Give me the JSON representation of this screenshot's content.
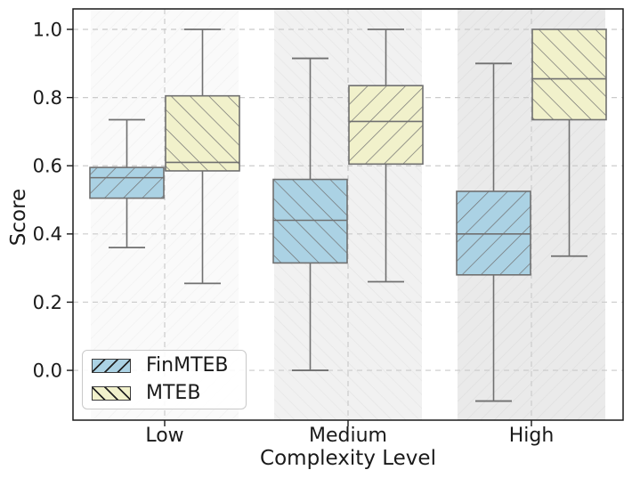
{
  "chart_data": {
    "type": "boxplot",
    "title": "",
    "xlabel": "Complexity Level",
    "ylabel": "Score",
    "categories": [
      "Low",
      "Medium",
      "High"
    ],
    "ytick_labels": [
      "0.0",
      "0.2",
      "0.4",
      "0.6",
      "0.8",
      "1.0"
    ],
    "ytick_values": [
      0.0,
      0.2,
      0.4,
      0.6,
      0.8,
      1.0
    ],
    "ylim": [
      -0.146,
      1.06
    ],
    "grid": true,
    "grid_style": "dashed",
    "legend": {
      "position": "lower-left",
      "items": [
        {
          "label": "FinMTEB",
          "color": "#abd2e4",
          "hatch": "/"
        },
        {
          "label": "MTEB",
          "color": "#f1f1cb",
          "hatch": "\\"
        }
      ]
    },
    "series": [
      {
        "name": "FinMTEB",
        "fill": "#abd2e4",
        "boxes": [
          {
            "category": "Low",
            "hatch": "/",
            "whisker_low": 0.36,
            "q1": 0.505,
            "median": 0.565,
            "q3": 0.595,
            "whisker_high": 0.735
          },
          {
            "category": "Medium",
            "hatch": "\\",
            "whisker_low": 0.0,
            "q1": 0.315,
            "median": 0.44,
            "q3": 0.56,
            "whisker_high": 0.915
          },
          {
            "category": "High",
            "hatch": "/",
            "whisker_low": -0.09,
            "q1": 0.28,
            "median": 0.4,
            "q3": 0.525,
            "whisker_high": 0.9
          }
        ]
      },
      {
        "name": "MTEB",
        "fill": "#f1f1cb",
        "boxes": [
          {
            "category": "Low",
            "hatch": "\\",
            "whisker_low": 0.255,
            "q1": 0.585,
            "median": 0.61,
            "q3": 0.805,
            "whisker_high": 1.0
          },
          {
            "category": "Medium",
            "hatch": "/",
            "whisker_low": 0.26,
            "q1": 0.605,
            "median": 0.73,
            "q3": 0.835,
            "whisker_high": 1.0
          },
          {
            "category": "High",
            "hatch": "\\",
            "whisker_low": 0.335,
            "q1": 0.735,
            "median": 0.855,
            "q3": 1.0,
            "whisker_high": 1.0
          }
        ]
      }
    ],
    "bands": {
      "hatches": [
        "/",
        "\\",
        "/"
      ],
      "colors": [
        "#fafafa",
        "#f1f1f1",
        "#eaeaea"
      ],
      "hatch_colors": [
        "#f0f0f0",
        "#e5e5e5",
        "#dedede"
      ]
    },
    "colors": {
      "box_edge": "#707070",
      "grid": "#cbcbcb",
      "spine": "#1a1a1a",
      "text": "#1a1a1a"
    }
  }
}
